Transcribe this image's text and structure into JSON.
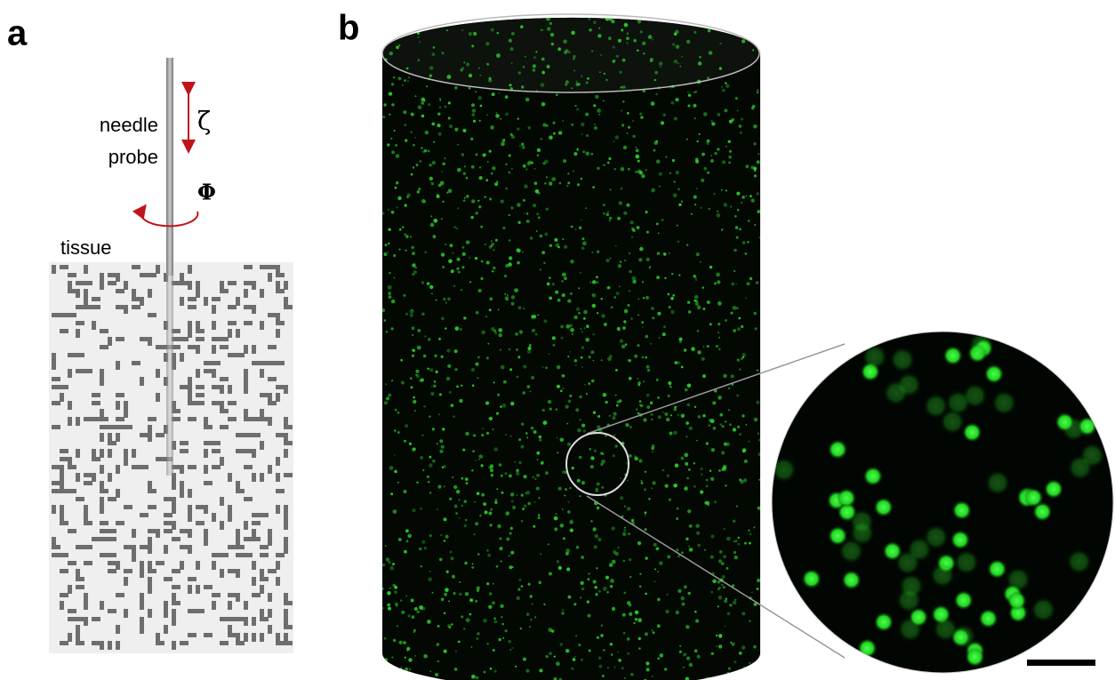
{
  "panel_a": {
    "label": "a",
    "probe_label": [
      "needle",
      "probe"
    ],
    "axial_symbol": "ζ",
    "rotation_symbol": "Φ",
    "tissue_label": "tissue"
  },
  "panel_b": {
    "label": "b"
  }
}
